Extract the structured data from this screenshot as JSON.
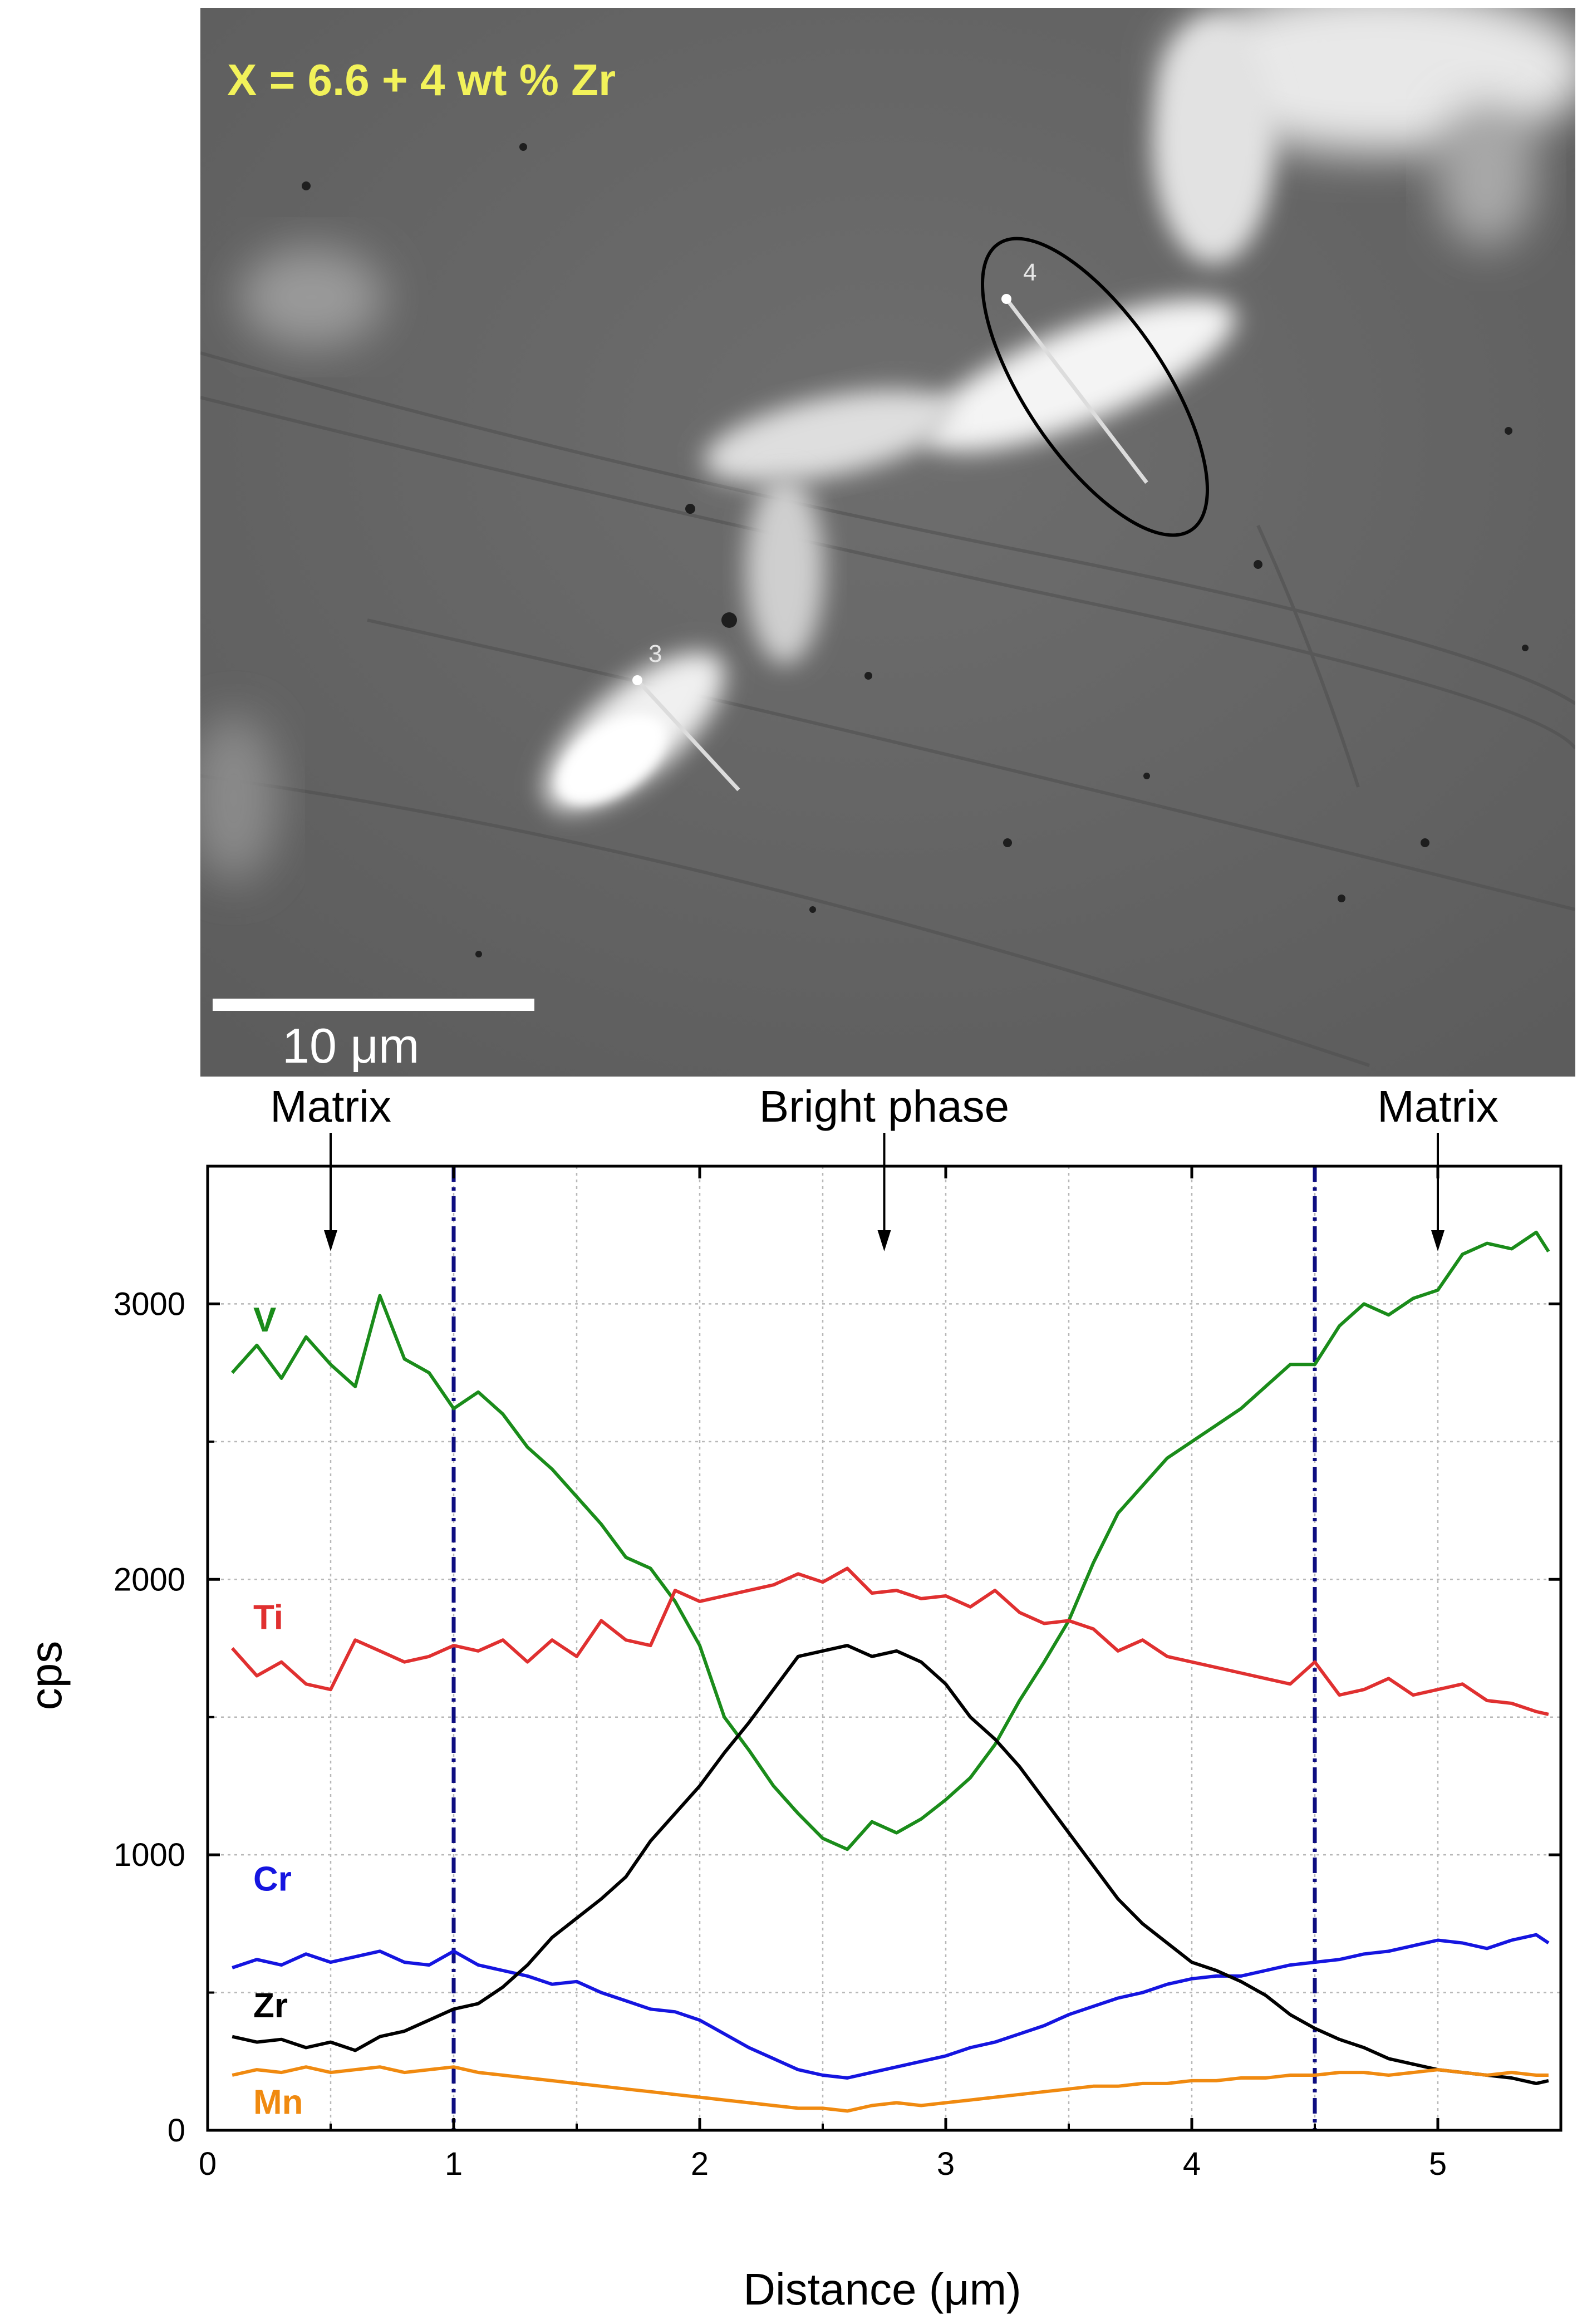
{
  "micrograph": {
    "composition_label": "X = 6.6 + 4 wt % Zr",
    "scale_bar_label": "10 μm",
    "line_labels": [
      "3",
      "4"
    ]
  },
  "chart_data": {
    "type": "line",
    "xlabel": "Distance (μm)",
    "ylabel": "cps",
    "xlim": [
      0,
      5.5
    ],
    "ylim": [
      0,
      3500
    ],
    "xticks": [
      0,
      1,
      2,
      3,
      4,
      5
    ],
    "yticks": [
      0,
      1000,
      2000,
      3000
    ],
    "grid": true,
    "boundaries": [
      1.0,
      4.5
    ],
    "annotations": [
      {
        "text": "Matrix",
        "x": 0.5
      },
      {
        "text": "Bright phase",
        "x": 2.75
      },
      {
        "text": "Matrix",
        "x": 5.0
      }
    ],
    "series": [
      {
        "name": "V",
        "color": "#1a8c1a",
        "points": [
          [
            0.1,
            2750
          ],
          [
            0.2,
            2850
          ],
          [
            0.3,
            2730
          ],
          [
            0.4,
            2880
          ],
          [
            0.5,
            2780
          ],
          [
            0.6,
            2700
          ],
          [
            0.7,
            3030
          ],
          [
            0.8,
            2800
          ],
          [
            0.9,
            2750
          ],
          [
            1.0,
            2620
          ],
          [
            1.1,
            2680
          ],
          [
            1.2,
            2600
          ],
          [
            1.3,
            2480
          ],
          [
            1.4,
            2400
          ],
          [
            1.5,
            2300
          ],
          [
            1.6,
            2200
          ],
          [
            1.7,
            2080
          ],
          [
            1.8,
            2040
          ],
          [
            1.9,
            1920
          ],
          [
            2.0,
            1760
          ],
          [
            2.1,
            1500
          ],
          [
            2.2,
            1380
          ],
          [
            2.3,
            1250
          ],
          [
            2.4,
            1150
          ],
          [
            2.5,
            1060
          ],
          [
            2.6,
            1020
          ],
          [
            2.7,
            1120
          ],
          [
            2.8,
            1080
          ],
          [
            2.9,
            1130
          ],
          [
            3.0,
            1200
          ],
          [
            3.1,
            1280
          ],
          [
            3.2,
            1400
          ],
          [
            3.3,
            1560
          ],
          [
            3.4,
            1700
          ],
          [
            3.5,
            1850
          ],
          [
            3.6,
            2060
          ],
          [
            3.7,
            2240
          ],
          [
            3.8,
            2340
          ],
          [
            3.9,
            2440
          ],
          [
            4.0,
            2500
          ],
          [
            4.1,
            2560
          ],
          [
            4.2,
            2620
          ],
          [
            4.3,
            2700
          ],
          [
            4.4,
            2780
          ],
          [
            4.5,
            2780
          ],
          [
            4.6,
            2920
          ],
          [
            4.7,
            3000
          ],
          [
            4.8,
            2960
          ],
          [
            4.9,
            3020
          ],
          [
            5.0,
            3050
          ],
          [
            5.1,
            3180
          ],
          [
            5.2,
            3220
          ],
          [
            5.3,
            3200
          ],
          [
            5.4,
            3260
          ],
          [
            5.45,
            3190
          ]
        ]
      },
      {
        "name": "Ti",
        "color": "#e03030",
        "points": [
          [
            0.1,
            1750
          ],
          [
            0.2,
            1650
          ],
          [
            0.3,
            1700
          ],
          [
            0.4,
            1620
          ],
          [
            0.5,
            1600
          ],
          [
            0.6,
            1780
          ],
          [
            0.7,
            1740
          ],
          [
            0.8,
            1700
          ],
          [
            0.9,
            1720
          ],
          [
            1.0,
            1760
          ],
          [
            1.1,
            1740
          ],
          [
            1.2,
            1780
          ],
          [
            1.3,
            1700
          ],
          [
            1.4,
            1780
          ],
          [
            1.5,
            1720
          ],
          [
            1.6,
            1850
          ],
          [
            1.7,
            1780
          ],
          [
            1.8,
            1760
          ],
          [
            1.9,
            1960
          ],
          [
            2.0,
            1920
          ],
          [
            2.1,
            1940
          ],
          [
            2.2,
            1960
          ],
          [
            2.3,
            1980
          ],
          [
            2.4,
            2020
          ],
          [
            2.5,
            1990
          ],
          [
            2.6,
            2040
          ],
          [
            2.7,
            1950
          ],
          [
            2.8,
            1960
          ],
          [
            2.9,
            1930
          ],
          [
            3.0,
            1940
          ],
          [
            3.1,
            1900
          ],
          [
            3.2,
            1960
          ],
          [
            3.3,
            1880
          ],
          [
            3.4,
            1840
          ],
          [
            3.5,
            1850
          ],
          [
            3.6,
            1820
          ],
          [
            3.7,
            1740
          ],
          [
            3.8,
            1780
          ],
          [
            3.9,
            1720
          ],
          [
            4.0,
            1700
          ],
          [
            4.1,
            1680
          ],
          [
            4.2,
            1660
          ],
          [
            4.3,
            1640
          ],
          [
            4.4,
            1620
          ],
          [
            4.5,
            1700
          ],
          [
            4.6,
            1580
          ],
          [
            4.7,
            1600
          ],
          [
            4.8,
            1640
          ],
          [
            4.9,
            1580
          ],
          [
            5.0,
            1600
          ],
          [
            5.1,
            1620
          ],
          [
            5.2,
            1560
          ],
          [
            5.3,
            1550
          ],
          [
            5.4,
            1520
          ],
          [
            5.45,
            1510
          ]
        ]
      },
      {
        "name": "Cr",
        "color": "#1515e0",
        "points": [
          [
            0.1,
            590
          ],
          [
            0.2,
            620
          ],
          [
            0.3,
            600
          ],
          [
            0.4,
            640
          ],
          [
            0.5,
            610
          ],
          [
            0.6,
            630
          ],
          [
            0.7,
            650
          ],
          [
            0.8,
            610
          ],
          [
            0.9,
            600
          ],
          [
            1.0,
            650
          ],
          [
            1.1,
            600
          ],
          [
            1.2,
            580
          ],
          [
            1.3,
            560
          ],
          [
            1.4,
            530
          ],
          [
            1.5,
            540
          ],
          [
            1.6,
            500
          ],
          [
            1.7,
            470
          ],
          [
            1.8,
            440
          ],
          [
            1.9,
            430
          ],
          [
            2.0,
            400
          ],
          [
            2.1,
            350
          ],
          [
            2.2,
            300
          ],
          [
            2.3,
            260
          ],
          [
            2.4,
            220
          ],
          [
            2.5,
            200
          ],
          [
            2.6,
            190
          ],
          [
            2.7,
            210
          ],
          [
            2.8,
            230
          ],
          [
            2.9,
            250
          ],
          [
            3.0,
            270
          ],
          [
            3.1,
            300
          ],
          [
            3.2,
            320
          ],
          [
            3.3,
            350
          ],
          [
            3.4,
            380
          ],
          [
            3.5,
            420
          ],
          [
            3.6,
            450
          ],
          [
            3.7,
            480
          ],
          [
            3.8,
            500
          ],
          [
            3.9,
            530
          ],
          [
            4.0,
            550
          ],
          [
            4.1,
            560
          ],
          [
            4.2,
            560
          ],
          [
            4.3,
            580
          ],
          [
            4.4,
            600
          ],
          [
            4.5,
            610
          ],
          [
            4.6,
            620
          ],
          [
            4.7,
            640
          ],
          [
            4.8,
            650
          ],
          [
            4.9,
            670
          ],
          [
            5.0,
            690
          ],
          [
            5.1,
            680
          ],
          [
            5.2,
            660
          ],
          [
            5.3,
            690
          ],
          [
            5.4,
            710
          ],
          [
            5.45,
            680
          ]
        ]
      },
      {
        "name": "Zr",
        "color": "#000000",
        "points": [
          [
            0.1,
            340
          ],
          [
            0.2,
            320
          ],
          [
            0.3,
            330
          ],
          [
            0.4,
            300
          ],
          [
            0.5,
            320
          ],
          [
            0.6,
            290
          ],
          [
            0.7,
            340
          ],
          [
            0.8,
            360
          ],
          [
            0.9,
            400
          ],
          [
            1.0,
            440
          ],
          [
            1.1,
            460
          ],
          [
            1.2,
            520
          ],
          [
            1.3,
            600
          ],
          [
            1.4,
            700
          ],
          [
            1.5,
            770
          ],
          [
            1.6,
            840
          ],
          [
            1.7,
            920
          ],
          [
            1.8,
            1050
          ],
          [
            1.9,
            1150
          ],
          [
            2.0,
            1250
          ],
          [
            2.1,
            1370
          ],
          [
            2.2,
            1480
          ],
          [
            2.3,
            1600
          ],
          [
            2.4,
            1720
          ],
          [
            2.5,
            1740
          ],
          [
            2.6,
            1760
          ],
          [
            2.7,
            1720
          ],
          [
            2.8,
            1740
          ],
          [
            2.9,
            1700
          ],
          [
            3.0,
            1620
          ],
          [
            3.1,
            1500
          ],
          [
            3.2,
            1420
          ],
          [
            3.3,
            1320
          ],
          [
            3.4,
            1200
          ],
          [
            3.5,
            1080
          ],
          [
            3.6,
            960
          ],
          [
            3.7,
            840
          ],
          [
            3.8,
            750
          ],
          [
            3.9,
            680
          ],
          [
            4.0,
            610
          ],
          [
            4.1,
            580
          ],
          [
            4.2,
            540
          ],
          [
            4.3,
            490
          ],
          [
            4.4,
            420
          ],
          [
            4.5,
            370
          ],
          [
            4.6,
            330
          ],
          [
            4.7,
            300
          ],
          [
            4.8,
            260
          ],
          [
            4.9,
            240
          ],
          [
            5.0,
            220
          ],
          [
            5.1,
            210
          ],
          [
            5.2,
            200
          ],
          [
            5.3,
            190
          ],
          [
            5.4,
            170
          ],
          [
            5.45,
            180
          ]
        ]
      },
      {
        "name": "Mn",
        "color": "#f08a10",
        "points": [
          [
            0.1,
            200
          ],
          [
            0.2,
            220
          ],
          [
            0.3,
            210
          ],
          [
            0.4,
            230
          ],
          [
            0.5,
            210
          ],
          [
            0.6,
            220
          ],
          [
            0.7,
            230
          ],
          [
            0.8,
            210
          ],
          [
            0.9,
            220
          ],
          [
            1.0,
            230
          ],
          [
            1.1,
            210
          ],
          [
            1.2,
            200
          ],
          [
            1.3,
            190
          ],
          [
            1.4,
            180
          ],
          [
            1.5,
            170
          ],
          [
            1.6,
            160
          ],
          [
            1.7,
            150
          ],
          [
            1.8,
            140
          ],
          [
            1.9,
            130
          ],
          [
            2.0,
            120
          ],
          [
            2.1,
            110
          ],
          [
            2.2,
            100
          ],
          [
            2.3,
            90
          ],
          [
            2.4,
            80
          ],
          [
            2.5,
            80
          ],
          [
            2.6,
            70
          ],
          [
            2.7,
            90
          ],
          [
            2.8,
            100
          ],
          [
            2.9,
            90
          ],
          [
            3.0,
            100
          ],
          [
            3.1,
            110
          ],
          [
            3.2,
            120
          ],
          [
            3.3,
            130
          ],
          [
            3.4,
            140
          ],
          [
            3.5,
            150
          ],
          [
            3.6,
            160
          ],
          [
            3.7,
            160
          ],
          [
            3.8,
            170
          ],
          [
            3.9,
            170
          ],
          [
            4.0,
            180
          ],
          [
            4.1,
            180
          ],
          [
            4.2,
            190
          ],
          [
            4.3,
            190
          ],
          [
            4.4,
            200
          ],
          [
            4.5,
            200
          ],
          [
            4.6,
            210
          ],
          [
            4.7,
            210
          ],
          [
            4.8,
            200
          ],
          [
            4.9,
            210
          ],
          [
            5.0,
            220
          ],
          [
            5.1,
            210
          ],
          [
            5.2,
            200
          ],
          [
            5.3,
            210
          ],
          [
            5.4,
            200
          ],
          [
            5.45,
            200
          ]
        ]
      }
    ]
  }
}
